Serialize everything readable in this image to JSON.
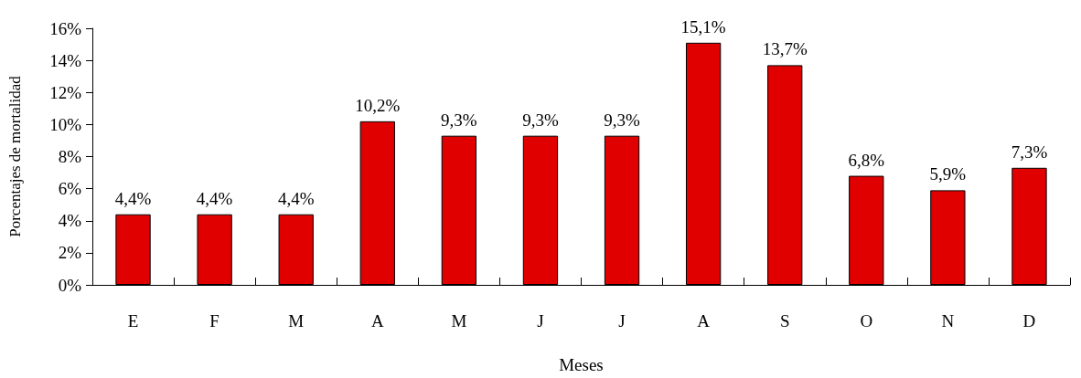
{
  "chart_data": {
    "type": "bar",
    "xlabel": "Meses",
    "ylabel": "Porcentajes de mortalidad",
    "categories": [
      "E",
      "F",
      "M",
      "A",
      "M",
      "J",
      "J",
      "A",
      "S",
      "O",
      "N",
      "D"
    ],
    "values": [
      4.4,
      4.4,
      4.4,
      10.2,
      9.3,
      9.3,
      9.3,
      15.1,
      13.7,
      6.8,
      5.9,
      7.3
    ],
    "value_labels": [
      "4,4%",
      "4,4%",
      "4,4%",
      "10,2%",
      "9,3%",
      "9,3%",
      "9,3%",
      "15,1%",
      "13,7%",
      "6,8%",
      "5,9%",
      "7,3%"
    ],
    "color": "#e00000",
    "ylim": [
      0,
      16
    ],
    "yticks": [
      {
        "value": 0,
        "label": "0%"
      },
      {
        "value": 2,
        "label": "2%"
      },
      {
        "value": 4,
        "label": "4%"
      },
      {
        "value": 6,
        "label": "6%"
      },
      {
        "value": 8,
        "label": "8%"
      },
      {
        "value": 10,
        "label": "10%"
      },
      {
        "value": 12,
        "label": "12%"
      },
      {
        "value": 14,
        "label": "14%"
      },
      {
        "value": 16,
        "label": "16%"
      }
    ],
    "grid": false
  }
}
